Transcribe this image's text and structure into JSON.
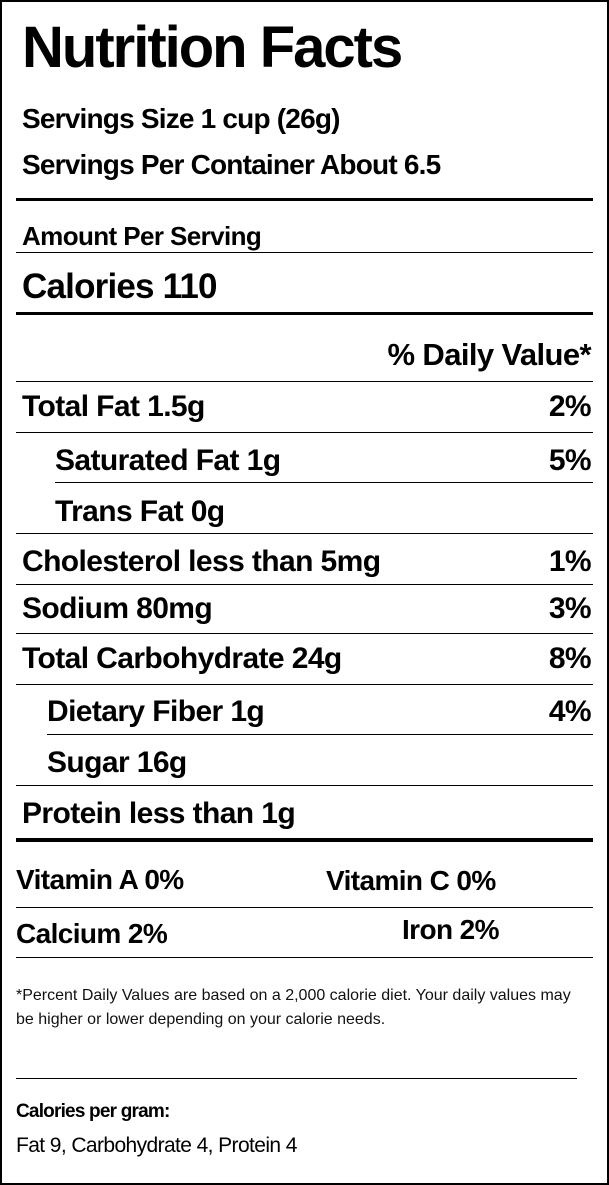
{
  "title": "Nutrition Facts",
  "serving_size": "Servings Size 1 cup (26g)",
  "servings_per_container": "Servings Per Container About 6.5",
  "amount_per_serving": "Amount Per Serving",
  "calories": "Calories 110",
  "daily_value_header": "% Daily Value*",
  "nutrients": [
    {
      "label": "Total Fat 1.5g",
      "dv": "2%"
    },
    {
      "label": "Saturated Fat 1g",
      "dv": "5%"
    },
    {
      "label": "Trans Fat 0g",
      "dv": ""
    },
    {
      "label": "Cholesterol less than 5mg",
      "dv": "1%"
    },
    {
      "label": "Sodium 80mg",
      "dv": "3%"
    },
    {
      "label": "Total Carbohydrate 24g",
      "dv": "8%"
    },
    {
      "label": "Dietary Fiber 1g",
      "dv": "4%"
    },
    {
      "label": "Sugar 16g",
      "dv": ""
    },
    {
      "label": "Protein less than 1g",
      "dv": ""
    }
  ],
  "vitamins": {
    "vitamin_a": "Vitamin A 0%",
    "vitamin_c": "Vitamin C  0%",
    "calcium": "Calcium  2%",
    "iron": "Iron  2%"
  },
  "footnote": "*Percent Daily Values are based on a 2,000 calorie diet. Your daily values may be higher or lower depending on your calorie needs.",
  "calories_per_gram_heading": "Calories per gram:",
  "calories_per_gram_values": "Fat 9, Carbohydrate 4, Protein 4"
}
